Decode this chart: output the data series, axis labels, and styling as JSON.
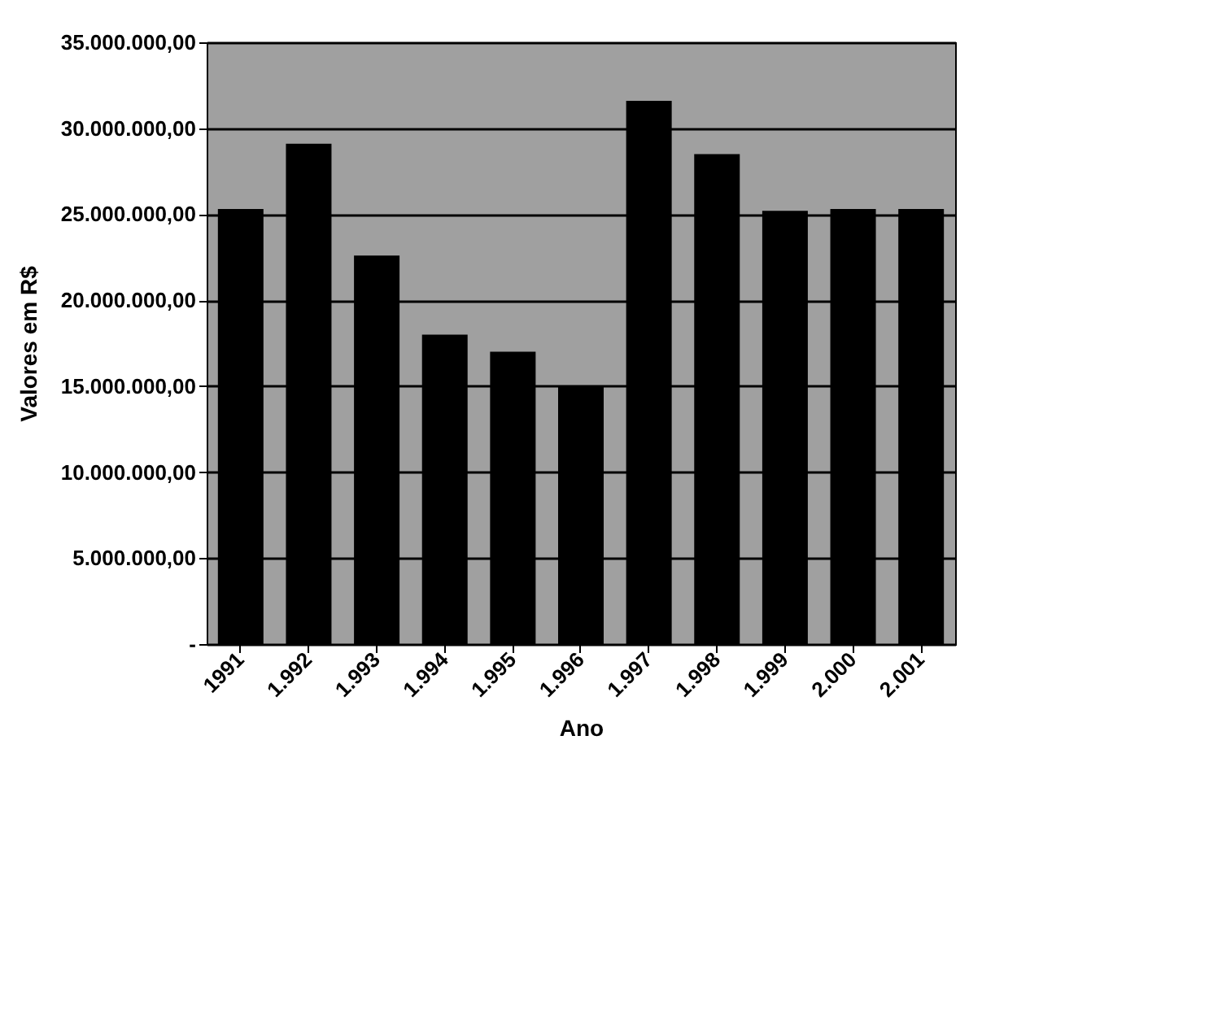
{
  "chart_data": {
    "type": "bar",
    "xlabel": "Ano",
    "ylabel": "Valores em R$",
    "categories": [
      "1991",
      "1.992",
      "1.993",
      "1.994",
      "1.995",
      "1.996",
      "1.997",
      "1.998",
      "1.999",
      "2.000",
      "2.001"
    ],
    "values": [
      25300000,
      29100000,
      22600000,
      18000000,
      17000000,
      15000000,
      31600000,
      28500000,
      25200000,
      25300000,
      25300000
    ],
    "color": "#000000",
    "ylim": [
      0,
      35000000
    ],
    "yticks": [
      {
        "value": 0,
        "label": "-"
      },
      {
        "value": 5000000,
        "label": "5.000.000,00"
      },
      {
        "value": 10000000,
        "label": "10.000.000,00"
      },
      {
        "value": 15000000,
        "label": "15.000.000,00"
      },
      {
        "value": 20000000,
        "label": "20.000.000,00"
      },
      {
        "value": 25000000,
        "label": "25.000.000,00"
      },
      {
        "value": 30000000,
        "label": "30.000.000,00"
      },
      {
        "value": 35000000,
        "label": "35.000.000,00"
      }
    ],
    "grid": "y"
  }
}
